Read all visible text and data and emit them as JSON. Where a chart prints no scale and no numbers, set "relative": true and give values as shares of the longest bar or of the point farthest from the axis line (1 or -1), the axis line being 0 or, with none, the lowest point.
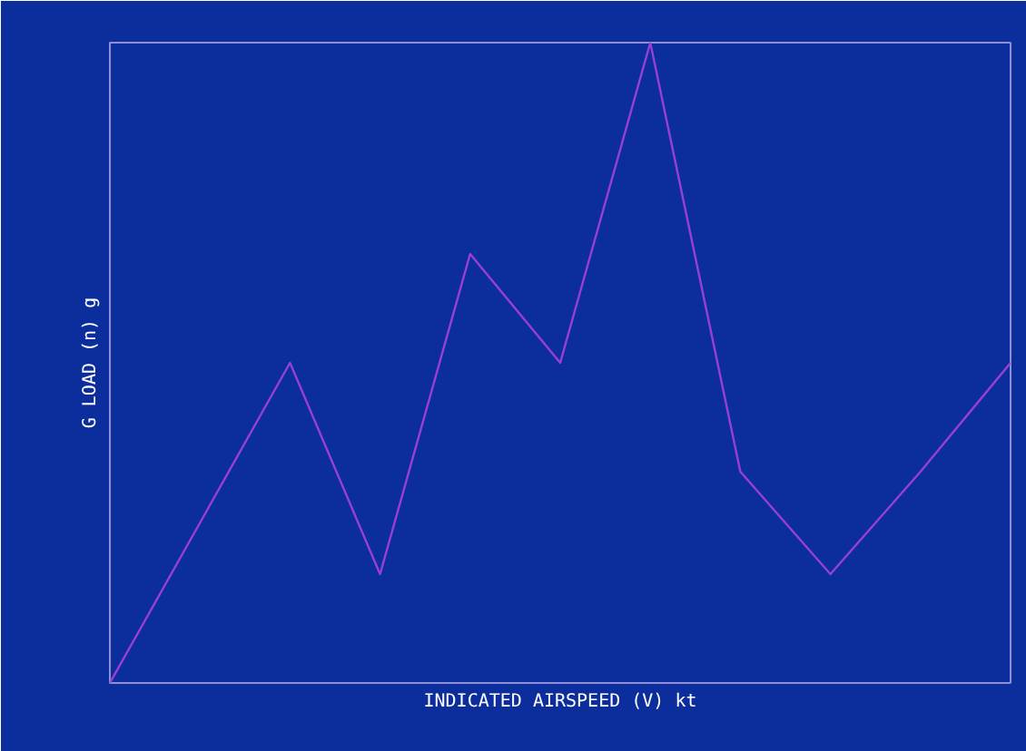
{
  "chart_data": {
    "type": "line",
    "xlabel": "INDICATED AIRSPEED (V) kt",
    "ylabel": "G LOAD (n) g",
    "relative": true,
    "categories": [
      null,
      null,
      null,
      null,
      null,
      null,
      null,
      null,
      null,
      null,
      null
    ],
    "series": [
      {
        "color": "#9a3fd6",
        "values": [
          0,
          0.25,
          0.5,
          0.17,
          0.67,
          0.5,
          1,
          0.33,
          0.17,
          0.33,
          0.5
        ]
      }
    ],
    "marker": "none",
    "line_style": "solid"
  }
}
